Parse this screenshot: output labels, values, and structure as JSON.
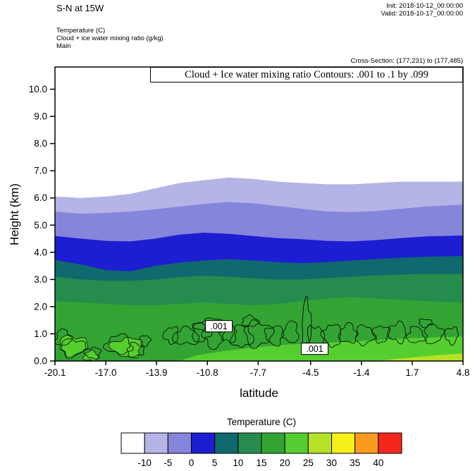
{
  "header": {
    "title": "S-N at 15W",
    "init": "Init: 2018-10-12_00:00:00",
    "valid": "Valid: 2018-10-17_00:00:00",
    "field_temperature": "Temperature   (C)",
    "field_cloud": "Cloud + ice water mixing ratio   (g/kg)",
    "field_main": "Main",
    "cross_section": "Cross-Section: (177,231) to (177,485)"
  },
  "chart_data": {
    "type": "area",
    "subtype": "filled-contour-vertical-cross-section",
    "title": "Cloud + Ice water mixing ratio Contours: .001 to .1 by .099",
    "xlabel": "latitude",
    "ylabel": "Height (km)",
    "xlim": [
      -20.1,
      4.8
    ],
    "ylim": [
      0,
      10.8
    ],
    "x_axis": {
      "label": "latitude",
      "tick_labels": [
        "-20.1",
        "-17.0",
        "-13.9",
        "-10.8",
        "-7.7",
        "-4.5",
        "-1.4",
        "1.7",
        "4.8"
      ],
      "tick_values": [
        -20.1,
        -17.0,
        -13.9,
        -10.8,
        -7.7,
        -4.5,
        -1.4,
        1.7,
        4.8
      ]
    },
    "y_axis": {
      "label": "Height (km)",
      "tick_labels": [
        "0.0",
        "1.0",
        "2.0",
        "3.0",
        "4.0",
        "5.0",
        "6.0",
        "7.0",
        "8.0",
        "9.0",
        "10.0"
      ],
      "tick_values": [
        0,
        1,
        2,
        3,
        4,
        5,
        6,
        7,
        8,
        9,
        10
      ]
    },
    "colorbar": {
      "title": "Temperature  (C)",
      "tick_labels": [
        "-10",
        "-5",
        "0",
        "5",
        "10",
        "15",
        "20",
        "25",
        "30",
        "35",
        "40"
      ],
      "colors": [
        "#ffffff",
        "#b4b4e6",
        "#8585db",
        "#1d1dd1",
        "#10696e",
        "#268c4d",
        "#33a433",
        "#55ce30",
        "#b7e126",
        "#f6ef19",
        "#fb9b1e",
        "#f5271c"
      ]
    },
    "temperature_bands": {
      "note": "heights in km of the top boundary of each temperature band vs latitude",
      "x": [
        -20.1,
        -18.5,
        -17,
        -15.5,
        -14,
        -12.5,
        -11,
        -9.5,
        -8,
        -6.5,
        -5,
        -3.5,
        -2,
        -0.5,
        1,
        2.5,
        4.8
      ],
      "levels": [
        {
          "range": "-10 to -5",
          "color": "#b4b4e6",
          "top": [
            6.05,
            6.0,
            6.05,
            6.15,
            6.35,
            6.55,
            6.65,
            6.75,
            6.7,
            6.6,
            6.55,
            6.5,
            6.5,
            6.55,
            6.6,
            6.6,
            6.6
          ]
        },
        {
          "range": "-5 to 0",
          "color": "#8585db",
          "top": [
            5.5,
            5.42,
            5.45,
            5.5,
            5.58,
            5.68,
            5.78,
            5.85,
            5.8,
            5.7,
            5.6,
            5.5,
            5.48,
            5.52,
            5.6,
            5.68,
            5.75
          ]
        },
        {
          "range": "0 to 5",
          "color": "#1d1dd1",
          "top": [
            4.6,
            4.5,
            4.42,
            4.4,
            4.5,
            4.65,
            4.72,
            4.68,
            4.6,
            4.52,
            4.48,
            4.42,
            4.4,
            4.45,
            4.52,
            4.58,
            4.62
          ]
        },
        {
          "range": "5 to 10",
          "color": "#10696e",
          "top": [
            3.72,
            3.55,
            3.35,
            3.3,
            3.5,
            3.62,
            3.7,
            3.74,
            3.7,
            3.64,
            3.6,
            3.64,
            3.7,
            3.75,
            3.8,
            3.84,
            3.86
          ]
        },
        {
          "range": "10 to 15",
          "color": "#268c4d",
          "top": [
            3.1,
            3.0,
            2.95,
            2.95,
            3.0,
            3.08,
            3.14,
            3.1,
            3.04,
            3.0,
            3.0,
            3.05,
            3.1,
            3.15,
            3.18,
            3.2,
            3.2
          ]
        },
        {
          "range": "15 to 20",
          "color": "#33a433",
          "top": [
            2.2,
            2.15,
            2.1,
            2.05,
            2.05,
            2.1,
            2.15,
            2.1,
            2.05,
            2.1,
            2.2,
            2.3,
            2.35,
            2.3,
            2.25,
            2.2,
            2.15
          ]
        }
      ]
    },
    "surface_patches": [
      {
        "kind": "wedge",
        "range": "20 to 25",
        "color": "#55ce30",
        "points": [
          [
            -12.5,
            0
          ],
          [
            -11.5,
            0.2
          ],
          [
            -10,
            0.35
          ],
          [
            -8,
            0.5
          ],
          [
            -6,
            0.6
          ],
          [
            -4,
            0.65
          ],
          [
            -2,
            0.72
          ],
          [
            0,
            0.78
          ],
          [
            2,
            0.85
          ],
          [
            4.8,
            0.9
          ],
          [
            4.8,
            0
          ]
        ]
      },
      {
        "kind": "blob",
        "range": "20 to 25",
        "color": "#55ce30",
        "x": -19.0,
        "y": 0.55,
        "rx": 0.85,
        "ry": 0.38
      },
      {
        "kind": "blob",
        "range": "20 to 25",
        "color": "#55ce30",
        "x": -15.7,
        "y": 0.5,
        "rx": 0.95,
        "ry": 0.35
      },
      {
        "kind": "blob",
        "range": "20 to 25",
        "color": "#55ce30",
        "x": -17.9,
        "y": 0.18,
        "rx": 0.45,
        "ry": 0.18
      },
      {
        "kind": "wedge",
        "range": "25 to 30",
        "color": "#b7e126",
        "points": [
          [
            -0.5,
            0
          ],
          [
            1.5,
            0.12
          ],
          [
            3,
            0.2
          ],
          [
            4.8,
            0.28
          ],
          [
            4.8,
            0
          ]
        ]
      }
    ],
    "cloud_contours": {
      "contour_label": ".001",
      "labels": [
        {
          "lat": -10.1,
          "km": 1.28
        },
        {
          "lat": -4.25,
          "km": 0.45
        }
      ],
      "blobs": [
        [
          -19.6,
          0.85,
          0.45,
          0.3
        ],
        [
          -19.0,
          0.5,
          0.75,
          0.3
        ],
        [
          -17.8,
          0.3,
          0.5,
          0.2
        ],
        [
          -16.2,
          0.6,
          0.8,
          0.35
        ],
        [
          -15.2,
          0.4,
          0.5,
          0.25
        ],
        [
          -14.6,
          0.75,
          0.3,
          0.2
        ],
        [
          -13.0,
          0.95,
          0.45,
          0.3
        ],
        [
          -12.1,
          0.9,
          0.8,
          0.3
        ],
        [
          -11.2,
          1.05,
          0.55,
          0.35
        ],
        [
          -10.4,
          0.95,
          0.65,
          0.45
        ],
        [
          -9.5,
          1.0,
          0.5,
          0.3
        ],
        [
          -8.7,
          0.9,
          0.65,
          0.4
        ],
        [
          -7.7,
          1.0,
          0.85,
          0.45
        ],
        [
          -6.7,
          0.95,
          0.55,
          0.35
        ],
        [
          -5.7,
          1.05,
          0.45,
          0.4
        ],
        [
          -4.75,
          1.35,
          0.28,
          0.85
        ],
        [
          -4.2,
          0.85,
          0.5,
          0.45
        ],
        [
          -3.2,
          0.95,
          0.55,
          0.4
        ],
        [
          -2.2,
          1.0,
          0.5,
          0.35
        ],
        [
          -1.2,
          0.95,
          0.55,
          0.35
        ],
        [
          -0.2,
          1.0,
          0.5,
          0.3
        ],
        [
          0.8,
          1.05,
          0.55,
          0.35
        ],
        [
          1.9,
          0.95,
          0.5,
          0.3
        ],
        [
          3.0,
          1.0,
          0.55,
          0.35
        ],
        [
          4.1,
          0.95,
          0.4,
          0.3
        ],
        [
          -10.6,
          1.3,
          0.9,
          0.25
        ],
        [
          -8.2,
          1.45,
          0.5,
          0.2
        ],
        [
          2.5,
          1.4,
          0.4,
          0.15
        ]
      ]
    }
  }
}
